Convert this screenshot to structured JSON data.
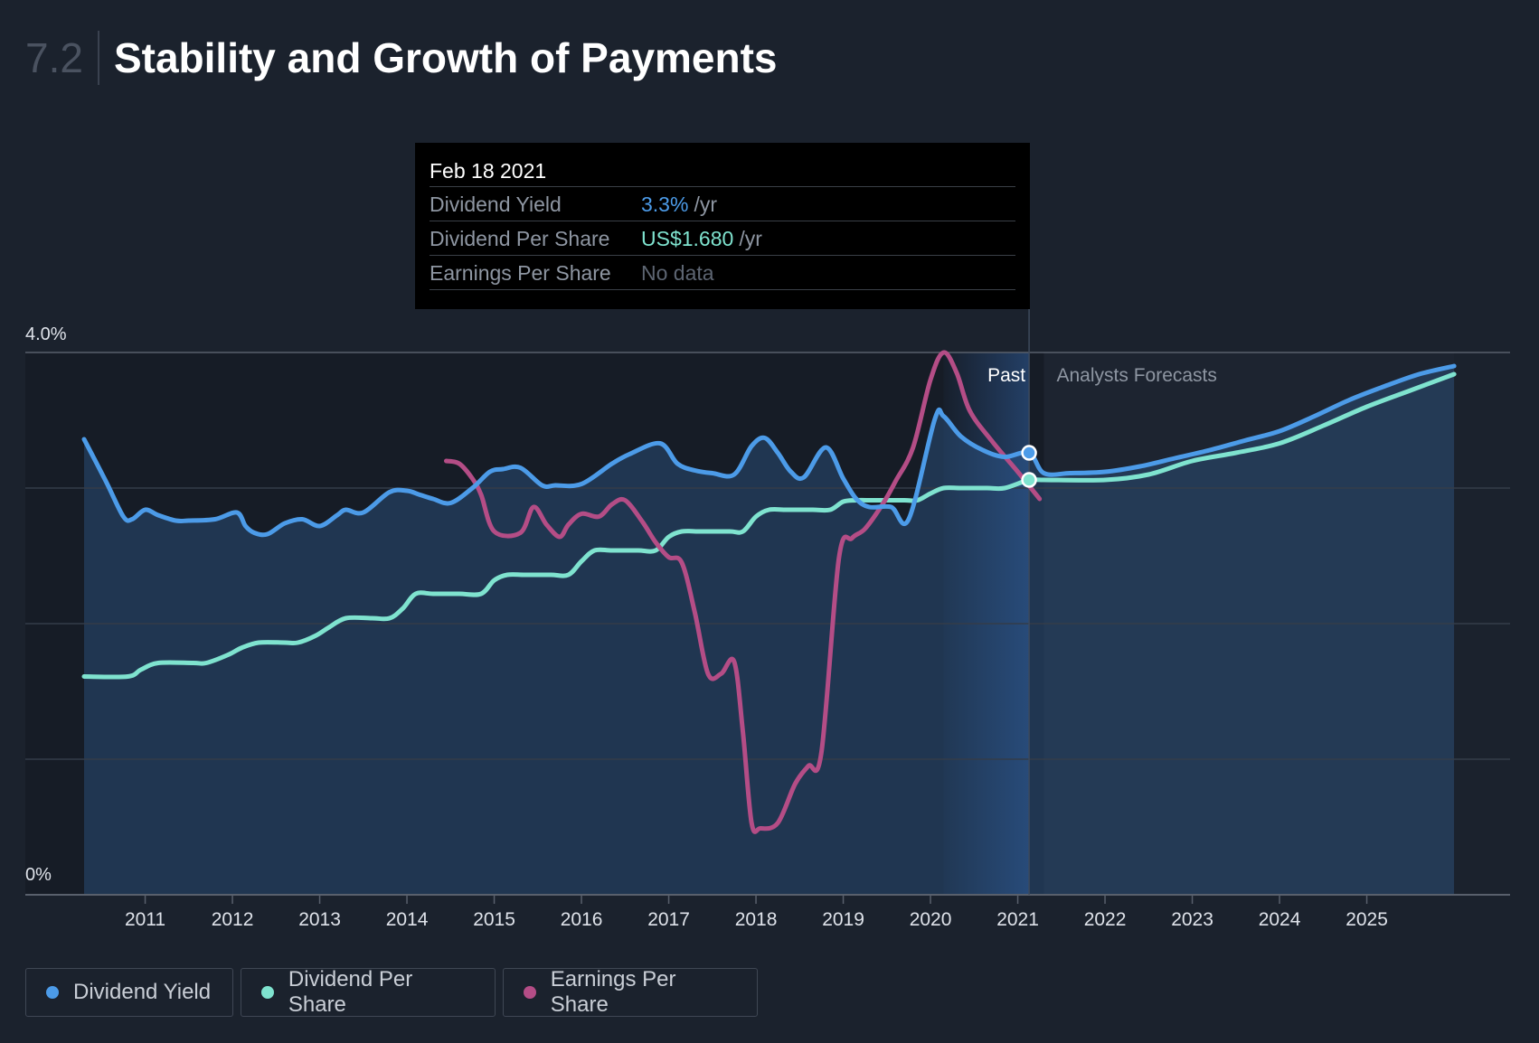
{
  "header": {
    "section_number": "7.2",
    "title": "Stability and Growth of Payments"
  },
  "tooltip": {
    "date": "Feb 18 2021",
    "rows": [
      {
        "label": "Dividend Yield",
        "value": "3.3%",
        "unit": "/yr"
      },
      {
        "label": "Dividend Per Share",
        "value": "US$1.680",
        "unit": "/yr"
      },
      {
        "label": "Earnings Per Share",
        "value": "No data",
        "unit": ""
      }
    ]
  },
  "legend": [
    {
      "label": "Dividend Yield",
      "color": "#4c9be8"
    },
    {
      "label": "Dividend Per Share",
      "color": "#7fe3cf"
    },
    {
      "label": "Earnings Per Share",
      "color": "#b44d86"
    }
  ],
  "chart_data": {
    "type": "line",
    "y_tick_labels": [
      "4.0%",
      "0%"
    ],
    "ylim": [
      0,
      4.0
    ],
    "xlim": [
      2010.3,
      2026.0
    ],
    "x_tick_labels": [
      "2011",
      "2012",
      "2013",
      "2014",
      "2015",
      "2016",
      "2017",
      "2018",
      "2019",
      "2020",
      "2021",
      "2022",
      "2023",
      "2024",
      "2025"
    ],
    "x_ticks": [
      2011,
      2012,
      2013,
      2014,
      2015,
      2016,
      2017,
      2018,
      2019,
      2020,
      2021,
      2022,
      2023,
      2024,
      2025
    ],
    "past_label": "Past",
    "forecast_label": "Analysts Forecasts",
    "past_region": [
      2020.15,
      2021.13
    ],
    "forecast_start": 2021.3,
    "hover_x": 2021.13,
    "grid": true,
    "series": [
      {
        "name": "Dividend Yield",
        "color": "#4c9be8",
        "x": [
          2010.3,
          2010.55,
          2010.75,
          2010.85,
          2011.0,
          2011.15,
          2011.35,
          2011.5,
          2011.8,
          2012.05,
          2012.15,
          2012.25,
          2012.4,
          2012.6,
          2012.8,
          2013.0,
          2013.2,
          2013.3,
          2013.5,
          2013.8,
          2014.0,
          2014.15,
          2014.3,
          2014.5,
          2014.75,
          2014.95,
          2015.1,
          2015.3,
          2015.55,
          2015.7,
          2016.0,
          2016.35,
          2016.55,
          2016.9,
          2017.1,
          2017.3,
          2017.5,
          2017.75,
          2017.95,
          2018.1,
          2018.25,
          2018.4,
          2018.55,
          2018.8,
          2019.0,
          2019.15,
          2019.3,
          2019.55,
          2019.75,
          2020.05,
          2020.15,
          2020.35,
          2020.6,
          2020.85,
          2021.13,
          2021.3,
          2021.6,
          2022.0,
          2022.4,
          2022.8,
          2023.2,
          2023.6,
          2024.0,
          2024.4,
          2024.8,
          2025.2,
          2025.6,
          2026.0
        ],
        "y": [
          3.36,
          3.05,
          2.79,
          2.77,
          2.84,
          2.8,
          2.76,
          2.76,
          2.77,
          2.82,
          2.72,
          2.67,
          2.66,
          2.74,
          2.77,
          2.72,
          2.8,
          2.84,
          2.82,
          2.97,
          2.98,
          2.95,
          2.92,
          2.89,
          3.0,
          3.12,
          3.14,
          3.15,
          3.02,
          3.02,
          3.03,
          3.18,
          3.25,
          3.33,
          3.18,
          3.13,
          3.11,
          3.1,
          3.31,
          3.37,
          3.26,
          3.12,
          3.08,
          3.3,
          3.07,
          2.92,
          2.86,
          2.86,
          2.77,
          3.51,
          3.53,
          3.38,
          3.28,
          3.23,
          3.26,
          3.11,
          3.11,
          3.12,
          3.16,
          3.22,
          3.28,
          3.35,
          3.42,
          3.53,
          3.65,
          3.75,
          3.84,
          3.9
        ]
      },
      {
        "name": "Dividend Per Share",
        "color": "#7fe3cf",
        "x": [
          2010.3,
          2010.8,
          2010.95,
          2011.15,
          2011.55,
          2011.7,
          2011.95,
          2012.1,
          2012.3,
          2012.6,
          2012.75,
          2012.95,
          2013.1,
          2013.3,
          2013.6,
          2013.8,
          2013.95,
          2014.1,
          2014.3,
          2014.6,
          2014.85,
          2015.0,
          2015.15,
          2015.35,
          2015.65,
          2015.85,
          2016.0,
          2016.15,
          2016.35,
          2016.65,
          2016.85,
          2017.0,
          2017.15,
          2017.35,
          2017.7,
          2017.85,
          2018.0,
          2018.15,
          2018.35,
          2018.65,
          2018.85,
          2019.0,
          2019.15,
          2019.35,
          2019.7,
          2019.85,
          2020.0,
          2020.15,
          2020.35,
          2020.65,
          2020.85,
          2021.13,
          2021.3,
          2022.0,
          2022.5,
          2023.0,
          2023.5,
          2024.0,
          2024.5,
          2025.0,
          2025.5,
          2026.0
        ],
        "y": [
          1.61,
          1.61,
          1.66,
          1.71,
          1.71,
          1.71,
          1.77,
          1.82,
          1.86,
          1.86,
          1.86,
          1.91,
          1.97,
          2.04,
          2.04,
          2.04,
          2.11,
          2.22,
          2.22,
          2.22,
          2.22,
          2.32,
          2.36,
          2.36,
          2.36,
          2.36,
          2.46,
          2.54,
          2.54,
          2.54,
          2.54,
          2.64,
          2.68,
          2.68,
          2.68,
          2.68,
          2.79,
          2.84,
          2.84,
          2.84,
          2.84,
          2.9,
          2.91,
          2.91,
          2.91,
          2.91,
          2.96,
          3.0,
          3.0,
          3.0,
          3.0,
          3.06,
          3.06,
          3.06,
          3.1,
          3.2,
          3.26,
          3.33,
          3.46,
          3.6,
          3.72,
          3.84
        ]
      },
      {
        "name": "Earnings Per Share",
        "color": "#b44d86",
        "x": [
          2014.45,
          2014.6,
          2014.75,
          2014.85,
          2015.0,
          2015.3,
          2015.45,
          2015.6,
          2015.75,
          2015.85,
          2016.0,
          2016.2,
          2016.35,
          2016.5,
          2016.7,
          2016.85,
          2017.0,
          2017.15,
          2017.3,
          2017.45,
          2017.6,
          2017.75,
          2017.85,
          2017.95,
          2018.05,
          2018.25,
          2018.45,
          2018.6,
          2018.75,
          2018.95,
          2019.1,
          2019.25,
          2019.45,
          2019.6,
          2019.8,
          2020.0,
          2020.15,
          2020.3,
          2020.45,
          2020.7,
          2021.0,
          2021.25
        ],
        "y": [
          3.2,
          3.18,
          3.07,
          2.95,
          2.68,
          2.67,
          2.86,
          2.73,
          2.64,
          2.73,
          2.81,
          2.79,
          2.88,
          2.91,
          2.75,
          2.6,
          2.49,
          2.45,
          2.08,
          1.63,
          1.63,
          1.72,
          1.2,
          0.53,
          0.49,
          0.53,
          0.82,
          0.95,
          1.05,
          2.48,
          2.63,
          2.7,
          2.88,
          3.05,
          3.3,
          3.8,
          4.0,
          3.85,
          3.57,
          3.35,
          3.12,
          2.92
        ]
      }
    ]
  }
}
